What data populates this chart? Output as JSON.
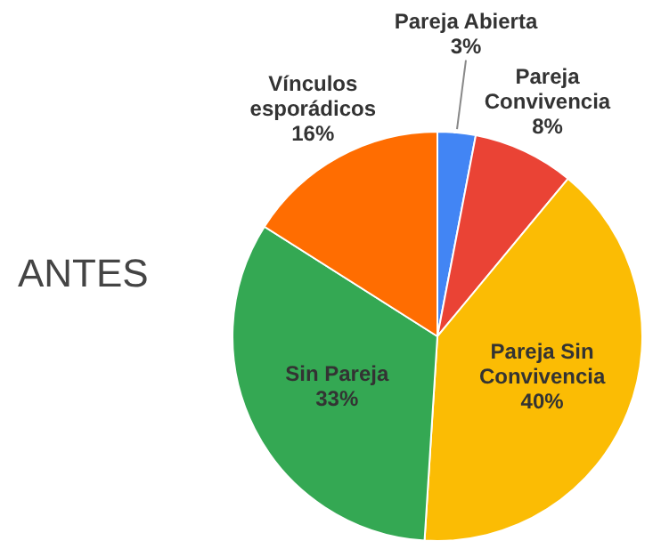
{
  "chart_data": {
    "type": "pie",
    "title": "ANTES",
    "categories": [
      "Pareja Abierta",
      "Pareja Convivencia",
      "Pareja Sin Convivencia",
      "Sin Pareja",
      "Vínculos esporádicos"
    ],
    "values": [
      3,
      8,
      40,
      33,
      16
    ],
    "value_labels": [
      "3%",
      "8%",
      "40%",
      "33%",
      "16%"
    ],
    "colors": [
      "#4285f4",
      "#ea4335",
      "#fbbc04",
      "#34a853",
      "#ff6d01"
    ],
    "legend": false
  }
}
